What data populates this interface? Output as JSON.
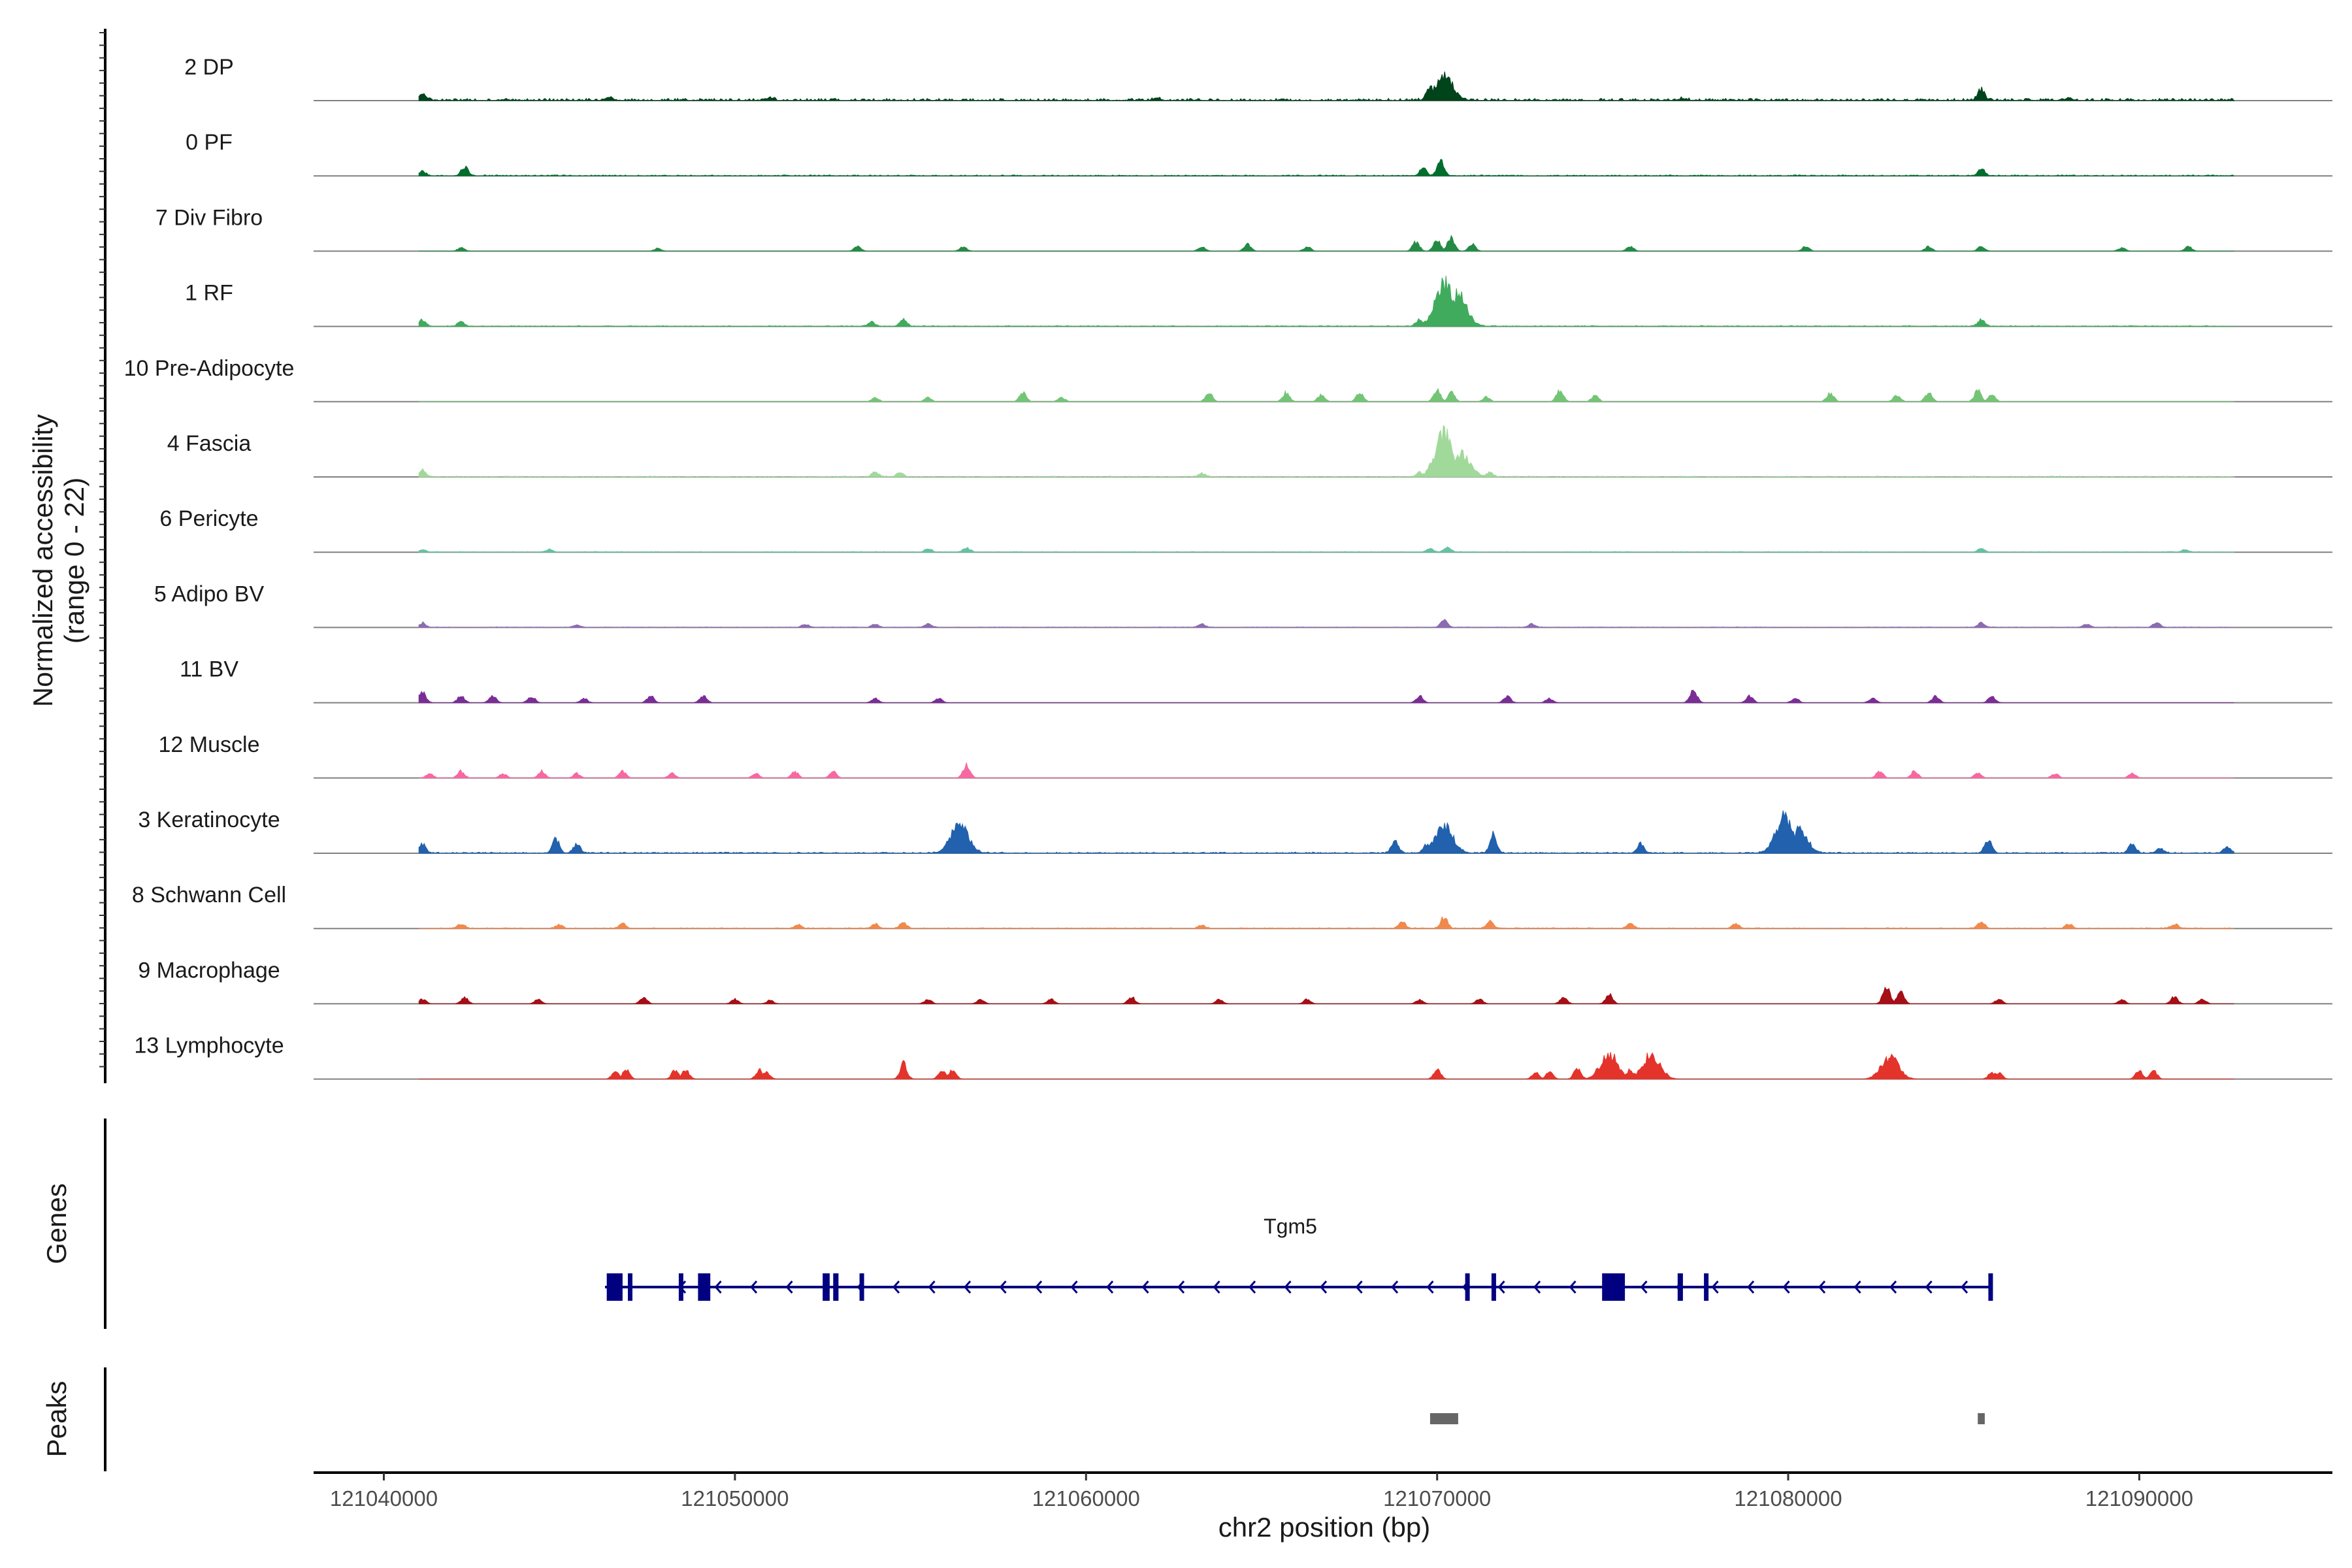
{
  "chart_data": {
    "type": "area",
    "title": "",
    "ylabel_lines": [
      "Normalized accessibility",
      "(range 0 - 22)"
    ],
    "ylim": [
      0,
      22
    ],
    "xlabel": "chr2 position (bp)",
    "xlim": [
      121038000,
      121095500
    ],
    "x_ticks": [
      121040000,
      121050000,
      121060000,
      121070000,
      121080000,
      121090000
    ],
    "x_tick_labels": [
      "121040000",
      "121050000",
      "121060000",
      "121070000",
      "121080000",
      "121090000"
    ],
    "series": [
      {
        "name": "2 DP",
        "color": "#00441b",
        "peaks": [
          [
            121041.1,
            3
          ],
          [
            121046.4,
            1.5
          ],
          [
            121070.2,
            10
          ],
          [
            121069.8,
            6
          ],
          [
            121085.5,
            5
          ],
          [
            121051,
            1
          ],
          [
            121062,
            1
          ],
          [
            121077,
            1
          ],
          [
            121088,
            1
          ]
        ],
        "baseline": 0.8,
        "noise": true
      },
      {
        "name": "0 PF",
        "color": "#006d2c",
        "peaks": [
          [
            121041.1,
            2
          ],
          [
            121042.3,
            4
          ],
          [
            121070.1,
            7
          ],
          [
            121069.6,
            3
          ],
          [
            121085.5,
            3
          ]
        ],
        "baseline": 0.35,
        "noise": true
      },
      {
        "name": "7 Div Fibro",
        "color": "#238b45",
        "peaks": [
          [
            121042.2,
            1.5
          ],
          [
            121047.8,
            1.2
          ],
          [
            121053.5,
            2
          ],
          [
            121056.5,
            2
          ],
          [
            121063.3,
            2
          ],
          [
            121064.6,
            3
          ],
          [
            121066.3,
            2
          ],
          [
            121069.4,
            4
          ],
          [
            121070,
            5
          ],
          [
            121070.4,
            6
          ],
          [
            121071,
            3
          ],
          [
            121075.5,
            2
          ],
          [
            121080.5,
            2
          ],
          [
            121084,
            2
          ],
          [
            121085.5,
            2
          ],
          [
            121089.5,
            1.5
          ],
          [
            121091.4,
            2
          ]
        ],
        "baseline": 0,
        "noise": false
      },
      {
        "name": "1 RF",
        "color": "#41ab5d",
        "peaks": [
          [
            121041.1,
            3
          ],
          [
            121042.2,
            2
          ],
          [
            121053.9,
            2
          ],
          [
            121054.8,
            3
          ],
          [
            121069.5,
            3
          ],
          [
            121070.2,
            20
          ],
          [
            121070.6,
            14
          ],
          [
            121069.9,
            5
          ],
          [
            121085.5,
            3
          ]
        ],
        "baseline": 0.3,
        "noise": true
      },
      {
        "name": "10 Pre-Adipocyte",
        "color": "#74c476",
        "peaks": [
          [
            121054,
            2
          ],
          [
            121055.5,
            2
          ],
          [
            121058.2,
            4
          ],
          [
            121059.3,
            2
          ],
          [
            121063.5,
            4
          ],
          [
            121065.7,
            4
          ],
          [
            121066.7,
            3
          ],
          [
            121067.8,
            4
          ],
          [
            121070,
            5
          ],
          [
            121070.4,
            4
          ],
          [
            121071.4,
            2
          ],
          [
            121073.5,
            5
          ],
          [
            121074.5,
            3
          ],
          [
            121081.2,
            4
          ],
          [
            121083.1,
            3
          ],
          [
            121084,
            4
          ],
          [
            121085.4,
            5
          ],
          [
            121085.8,
            3
          ]
        ],
        "baseline": 0,
        "noise": false
      },
      {
        "name": "4 Fascia",
        "color": "#a1d99b",
        "peaks": [
          [
            121041.1,
            3
          ],
          [
            121054,
            2
          ],
          [
            121054.7,
            2
          ],
          [
            121063.3,
            1.5
          ],
          [
            121069.5,
            2
          ],
          [
            121070.2,
            19
          ],
          [
            121070.7,
            10
          ],
          [
            121071.5,
            2
          ]
        ],
        "baseline": 0.3,
        "noise": true
      },
      {
        "name": "6 Pericyte",
        "color": "#66c2a4",
        "peaks": [
          [
            121041.1,
            1
          ],
          [
            121044.7,
            1
          ],
          [
            121055.5,
            1.5
          ],
          [
            121056.6,
            2
          ],
          [
            121069.8,
            1.5
          ],
          [
            121070.3,
            2
          ],
          [
            121085.5,
            1.5
          ],
          [
            121091.3,
            1
          ]
        ],
        "baseline": 0.25,
        "noise": true
      },
      {
        "name": "5 Adipo BV",
        "color": "#8c6bb1",
        "peaks": [
          [
            121041.1,
            2
          ],
          [
            121045.5,
            1
          ],
          [
            121052,
            1.5
          ],
          [
            121054,
            1.5
          ],
          [
            121055.5,
            1.5
          ],
          [
            121063.3,
            1.5
          ],
          [
            121070.2,
            3
          ],
          [
            121072.7,
            1.5
          ],
          [
            121085.5,
            2
          ],
          [
            121088.5,
            1.5
          ],
          [
            121090.5,
            2
          ]
        ],
        "baseline": 0.2,
        "noise": true
      },
      {
        "name": "11 BV",
        "color": "#7b2d96",
        "peaks": [
          [
            121041.1,
            5
          ],
          [
            121042.2,
            3
          ],
          [
            121043.1,
            3
          ],
          [
            121044.2,
            3
          ],
          [
            121045.7,
            2
          ],
          [
            121047.6,
            3
          ],
          [
            121049.1,
            3
          ],
          [
            121054,
            2
          ],
          [
            121055.8,
            2
          ],
          [
            121069.5,
            3
          ],
          [
            121072,
            3
          ],
          [
            121073.2,
            2
          ],
          [
            121077.3,
            6
          ],
          [
            121078.9,
            3
          ],
          [
            121080.2,
            2
          ],
          [
            121082.4,
            2
          ],
          [
            121084.2,
            3
          ],
          [
            121085.8,
            3
          ]
        ],
        "baseline": 0,
        "noise": false
      },
      {
        "name": "12 Muscle",
        "color": "#f768a1",
        "peaks": [
          [
            121041.3,
            2
          ],
          [
            121042.2,
            3
          ],
          [
            121043.4,
            2
          ],
          [
            121044.5,
            3
          ],
          [
            121045.5,
            2
          ],
          [
            121046.8,
            3
          ],
          [
            121048.2,
            2
          ],
          [
            121050.6,
            2
          ],
          [
            121051.7,
            3
          ],
          [
            121052.8,
            3
          ],
          [
            121056.6,
            6
          ],
          [
            121082.6,
            3
          ],
          [
            121083.6,
            3
          ],
          [
            121085.4,
            2
          ],
          [
            121087.6,
            2
          ],
          [
            121089.8,
            2
          ]
        ],
        "baseline": 0,
        "noise": false
      },
      {
        "name": "3 Keratinocyte",
        "color": "#2161ae",
        "peaks": [
          [
            121041.1,
            4
          ],
          [
            121044.9,
            6
          ],
          [
            121045.5,
            4
          ],
          [
            121056.4,
            12
          ],
          [
            121056.1,
            6
          ],
          [
            121068.8,
            5
          ],
          [
            121069.7,
            4
          ],
          [
            121070.2,
            12
          ],
          [
            121071.6,
            8
          ],
          [
            121075.8,
            4
          ],
          [
            121079.9,
            16
          ],
          [
            121080.3,
            10
          ],
          [
            121085.7,
            6
          ],
          [
            121089.8,
            4
          ],
          [
            121090.6,
            2
          ],
          [
            121092.5,
            3
          ]
        ],
        "baseline": 0.4,
        "noise": true
      },
      {
        "name": "8 Schwann Cell",
        "color": "#f0894d",
        "peaks": [
          [
            121042.2,
            2
          ],
          [
            121045,
            1.5
          ],
          [
            121046.8,
            2
          ],
          [
            121051.8,
            1.5
          ],
          [
            121054,
            2
          ],
          [
            121054.8,
            2.5
          ],
          [
            121063.3,
            1.5
          ],
          [
            121069,
            3
          ],
          [
            121070.2,
            5
          ],
          [
            121071.5,
            3
          ],
          [
            121075.5,
            2
          ],
          [
            121078.5,
            2
          ],
          [
            121085.5,
            3
          ],
          [
            121088,
            2
          ],
          [
            121091,
            2
          ]
        ],
        "baseline": 0.3,
        "noise": true
      },
      {
        "name": "9 Macrophage",
        "color": "#a50f15",
        "peaks": [
          [
            121041.1,
            2
          ],
          [
            121042.3,
            3
          ],
          [
            121044.4,
            2
          ],
          [
            121047.4,
            3
          ],
          [
            121050,
            2
          ],
          [
            121051,
            1.5
          ],
          [
            121055.5,
            2
          ],
          [
            121057,
            2
          ],
          [
            121059,
            2
          ],
          [
            121061.3,
            3
          ],
          [
            121063.8,
            2
          ],
          [
            121066.3,
            2
          ],
          [
            121069.5,
            2
          ],
          [
            121071.2,
            2
          ],
          [
            121073.6,
            3
          ],
          [
            121074.9,
            4
          ],
          [
            121082.8,
            8
          ],
          [
            121083.2,
            5
          ],
          [
            121086,
            2
          ],
          [
            121089.5,
            2
          ],
          [
            121091,
            3
          ],
          [
            121091.8,
            2
          ]
        ],
        "baseline": 0,
        "noise": false
      },
      {
        "name": "13 Lymphocyte",
        "color": "#e4332b",
        "peaks": [
          [
            121046.6,
            4
          ],
          [
            121046.9,
            4
          ],
          [
            121048.3,
            4
          ],
          [
            121048.6,
            4
          ],
          [
            121050.7,
            4
          ],
          [
            121050.9,
            3
          ],
          [
            121054.8,
            7
          ],
          [
            121055.9,
            4
          ],
          [
            121056.2,
            4
          ],
          [
            121070,
            4
          ],
          [
            121072.8,
            3
          ],
          [
            121073.2,
            3
          ],
          [
            121074,
            5
          ],
          [
            121074.9,
            11
          ],
          [
            121075.1,
            8
          ],
          [
            121075.5,
            4
          ],
          [
            121076.1,
            11
          ],
          [
            121082.9,
            10
          ],
          [
            121085.8,
            3
          ],
          [
            121086,
            3
          ],
          [
            121090,
            4
          ],
          [
            121090.4,
            4
          ]
        ],
        "baseline": 0,
        "noise": false
      }
    ],
    "genes": {
      "axis_label": "Genes",
      "name": "Tgm5",
      "color": "#000080",
      "start": 121046300,
      "end": 121085800,
      "strand": "-",
      "exons": [
        [
          121046350,
          121046800
        ],
        [
          121046950,
          121047050
        ],
        [
          121048400,
          121048500
        ],
        [
          121048950,
          121049300
        ],
        [
          121052500,
          121052700
        ],
        [
          121052800,
          121052950
        ],
        [
          121053550,
          121053650
        ],
        [
          121070800,
          121070900
        ],
        [
          121071550,
          121071650
        ],
        [
          121074700,
          121075350
        ],
        [
          121076850,
          121077000
        ],
        [
          121077600,
          121077700
        ],
        [
          121085700,
          121085800
        ]
      ]
    },
    "peaks_track": {
      "axis_label": "Peaks",
      "color": "#666666",
      "regions": [
        [
          121069800,
          121070600
        ],
        [
          121085400,
          121085600
        ]
      ]
    }
  }
}
